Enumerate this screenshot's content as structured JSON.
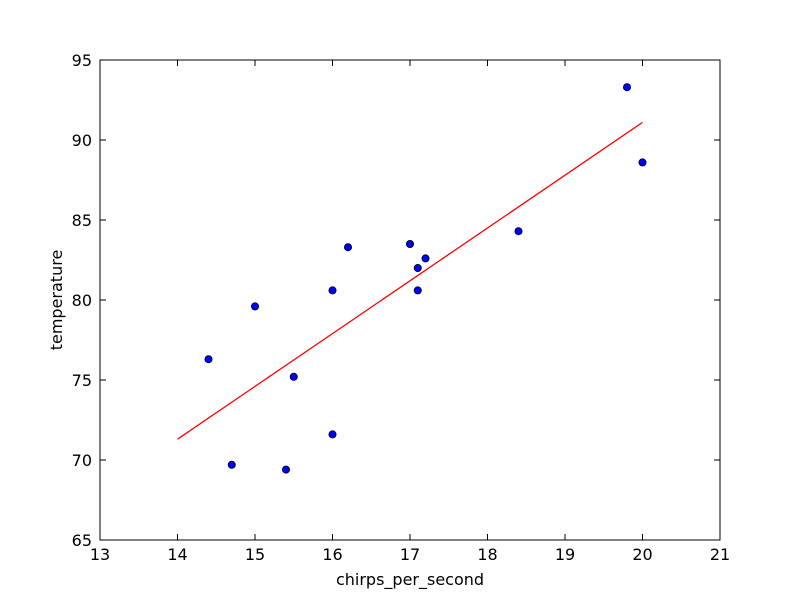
{
  "chart_data": {
    "type": "scatter",
    "title": "",
    "xlabel": "chirps_per_second",
    "ylabel": "temperature",
    "xlim": [
      13,
      21
    ],
    "ylim": [
      65,
      95
    ],
    "xticks": [
      13,
      14,
      15,
      16,
      17,
      18,
      19,
      20,
      21
    ],
    "yticks": [
      65,
      70,
      75,
      80,
      85,
      90,
      95
    ],
    "grid": false,
    "points": [
      {
        "x": 14.4,
        "y": 76.3
      },
      {
        "x": 14.7,
        "y": 69.7
      },
      {
        "x": 15.0,
        "y": 79.6
      },
      {
        "x": 15.4,
        "y": 69.4
      },
      {
        "x": 15.5,
        "y": 75.2
      },
      {
        "x": 16.0,
        "y": 71.6
      },
      {
        "x": 16.0,
        "y": 80.6
      },
      {
        "x": 16.2,
        "y": 83.3
      },
      {
        "x": 17.0,
        "y": 83.5
      },
      {
        "x": 17.1,
        "y": 80.6
      },
      {
        "x": 17.1,
        "y": 82.0
      },
      {
        "x": 17.2,
        "y": 82.6
      },
      {
        "x": 18.4,
        "y": 84.3
      },
      {
        "x": 19.8,
        "y": 93.3
      },
      {
        "x": 20.0,
        "y": 88.6
      }
    ],
    "fit_line": {
      "x": [
        14.0,
        20.0
      ],
      "y": [
        71.3,
        91.1
      ]
    },
    "colors": {
      "points": "#0000ff",
      "point_edge": "#000000",
      "fit_line": "#ff0000"
    }
  }
}
